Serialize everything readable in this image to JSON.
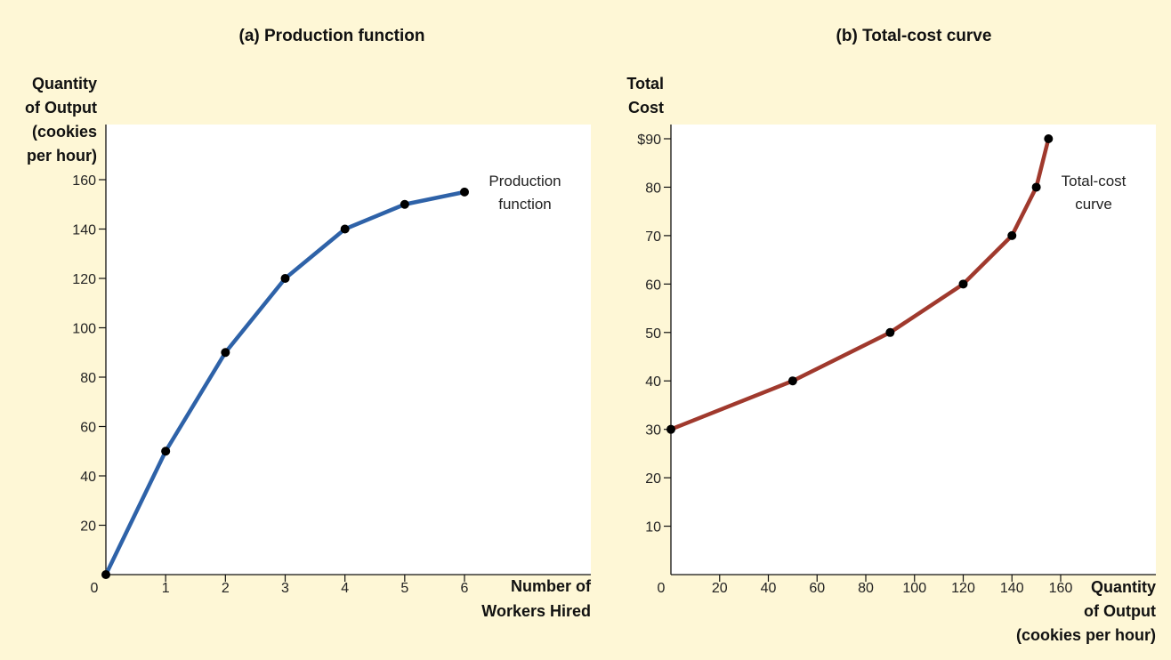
{
  "chart_data": [
    {
      "type": "line",
      "title": "(a) Production function",
      "ylabel": [
        "Quantity",
        "of Output",
        "(cookies",
        "per hour)"
      ],
      "xlabel": [
        "Number of",
        "Workers Hired"
      ],
      "x": [
        0,
        1,
        2,
        3,
        4,
        5,
        6
      ],
      "series": [
        {
          "values": [
            0,
            50,
            90,
            120,
            140,
            150,
            155
          ]
        }
      ],
      "xlim": [
        0,
        8
      ],
      "ylim": [
        0,
        180
      ],
      "xticks": [
        1,
        2,
        3,
        4,
        5,
        6
      ],
      "xtick_labels": [
        "1",
        "2",
        "3",
        "4",
        "5",
        "6"
      ],
      "yticks": [
        20,
        40,
        60,
        80,
        100,
        120,
        140,
        160
      ],
      "ytick_labels": [
        "20",
        "40",
        "60",
        "80",
        "100",
        "120",
        "140",
        "160"
      ],
      "origin_label": "0",
      "annotation": [
        "Production",
        "function"
      ],
      "line_color": "#2e62a8",
      "point_color": "#000000"
    },
    {
      "type": "line",
      "title": "(b) Total-cost curve",
      "ylabel": [
        "Total",
        "Cost"
      ],
      "xlabel": [
        "Quantity",
        "of Output",
        "(cookies per hour)"
      ],
      "x": [
        0,
        50,
        90,
        120,
        140,
        150,
        155
      ],
      "series": [
        {
          "values": [
            30,
            40,
            50,
            60,
            70,
            80,
            90
          ]
        }
      ],
      "xlim": [
        0,
        200
      ],
      "ylim": [
        0,
        95
      ],
      "xticks": [
        20,
        40,
        60,
        80,
        100,
        120,
        140,
        160
      ],
      "xtick_labels": [
        "20",
        "40",
        "60",
        "80",
        "100",
        "120",
        "140",
        "160"
      ],
      "yticks": [
        10,
        20,
        30,
        40,
        50,
        60,
        70,
        80,
        90
      ],
      "ytick_labels": [
        "10",
        "20",
        "30",
        "40",
        "50",
        "60",
        "70",
        "80",
        "$90"
      ],
      "origin_label": "0",
      "annotation": [
        "Total-cost",
        "curve"
      ],
      "line_color": "#a0392d",
      "point_color": "#000000"
    }
  ]
}
